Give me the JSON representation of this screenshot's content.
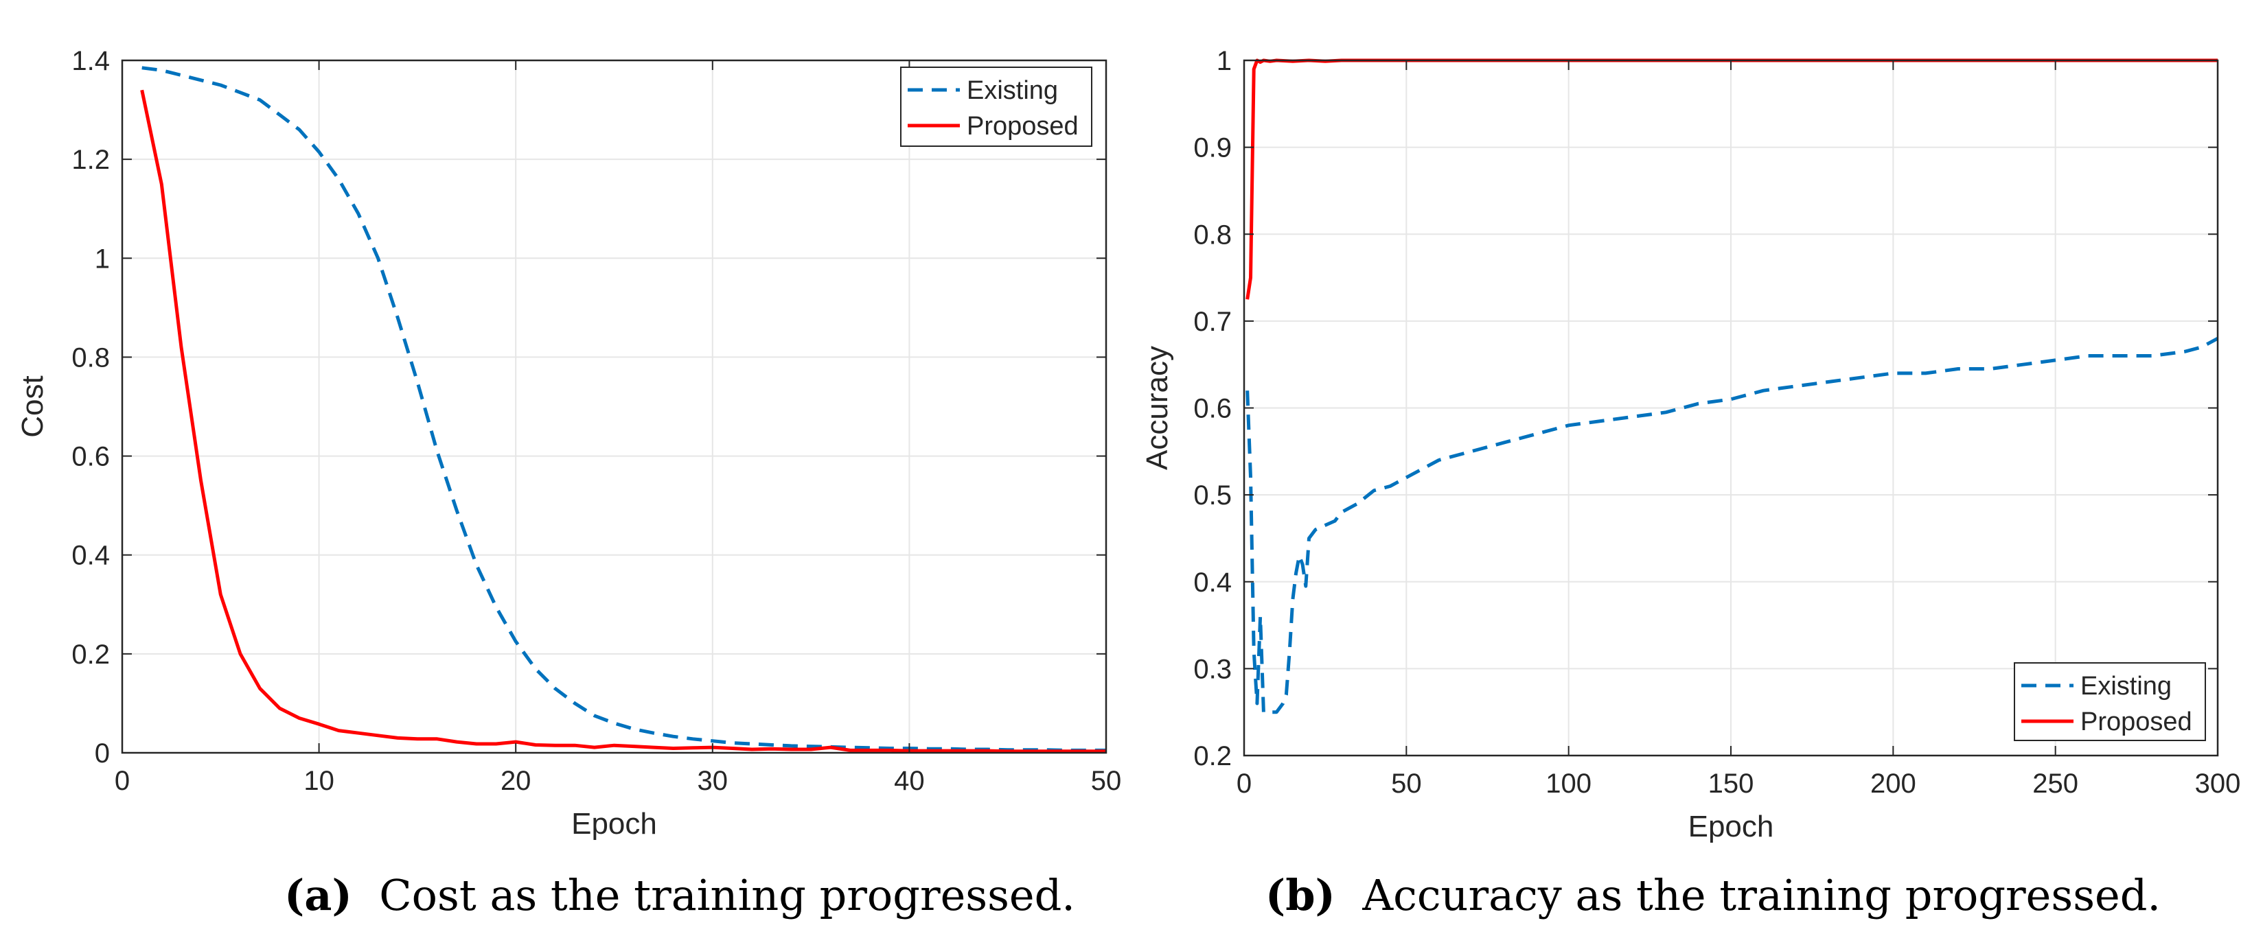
{
  "colors": {
    "existing": "#0072BD",
    "proposed": "#FF0000",
    "grid": "#E6E6E6",
    "axis": "#262626"
  },
  "captions": [
    {
      "tag": "(a)",
      "text": "Cost as the training progressed."
    },
    {
      "tag": "(b)",
      "text": "Accuracy as the training progressed."
    }
  ],
  "chart_data": [
    {
      "type": "line",
      "title": "",
      "xlabel": "Epoch",
      "ylabel": "Cost",
      "xlim": [
        0,
        50
      ],
      "ylim": [
        0,
        1.4
      ],
      "xticks": [
        0,
        10,
        20,
        30,
        40,
        50
      ],
      "xtick_labels": [
        "0",
        "10",
        "20",
        "30",
        "40",
        "50"
      ],
      "yticks": [
        0,
        0.2,
        0.4,
        0.6,
        0.8,
        1,
        1.2,
        1.4
      ],
      "ytick_labels": [
        "0",
        "0.2",
        "0.4",
        "0.6",
        "0.8",
        "1",
        "1.2",
        "1.4"
      ],
      "grid": true,
      "legend": "top-right",
      "series": [
        {
          "name": "Existing",
          "style": "dashed",
          "x": [
            1,
            2,
            3,
            4,
            5,
            6,
            7,
            8,
            9,
            10,
            11,
            12,
            13,
            14,
            15,
            16,
            17,
            18,
            19,
            20,
            21,
            22,
            23,
            24,
            25,
            26,
            27,
            28,
            29,
            30,
            31,
            32,
            33,
            34,
            35,
            36,
            37,
            38,
            39,
            40,
            41,
            42,
            43,
            44,
            45,
            46,
            47,
            48,
            49,
            50
          ],
          "y": [
            1.385,
            1.38,
            1.37,
            1.36,
            1.35,
            1.335,
            1.32,
            1.29,
            1.26,
            1.215,
            1.16,
            1.09,
            1.0,
            0.88,
            0.75,
            0.61,
            0.49,
            0.38,
            0.295,
            0.225,
            0.17,
            0.13,
            0.1,
            0.075,
            0.06,
            0.048,
            0.04,
            0.033,
            0.028,
            0.024,
            0.02,
            0.018,
            0.016,
            0.014,
            0.013,
            0.012,
            0.011,
            0.01,
            0.009,
            0.009,
            0.008,
            0.008,
            0.007,
            0.007,
            0.006,
            0.006,
            0.006,
            0.005,
            0.005,
            0.005
          ]
        },
        {
          "name": "Proposed",
          "style": "solid",
          "x": [
            1,
            2,
            3,
            4,
            5,
            6,
            7,
            8,
            9,
            10,
            11,
            12,
            13,
            14,
            15,
            16,
            17,
            18,
            19,
            20,
            21,
            22,
            23,
            24,
            25,
            26,
            27,
            28,
            29,
            30,
            31,
            32,
            33,
            34,
            35,
            36,
            37,
            38,
            39,
            40,
            41,
            42,
            43,
            44,
            45,
            46,
            47,
            48,
            49,
            50
          ],
          "y": [
            1.34,
            1.15,
            0.82,
            0.55,
            0.32,
            0.2,
            0.13,
            0.09,
            0.07,
            0.058,
            0.045,
            0.04,
            0.035,
            0.03,
            0.028,
            0.028,
            0.022,
            0.018,
            0.018,
            0.022,
            0.016,
            0.015,
            0.015,
            0.011,
            0.015,
            0.013,
            0.011,
            0.009,
            0.01,
            0.011,
            0.009,
            0.007,
            0.008,
            0.007,
            0.007,
            0.011,
            0.005,
            0.005,
            0.005,
            0.004,
            0.004,
            0.004,
            0.004,
            0.004,
            0.003,
            0.003,
            0.003,
            0.003,
            0.003,
            0.003
          ]
        }
      ]
    },
    {
      "type": "line",
      "title": "",
      "xlabel": "Epoch",
      "ylabel": "Accuracy",
      "xlim": [
        0,
        300
      ],
      "ylim": [
        0.2,
        1.0
      ],
      "xticks": [
        0,
        50,
        100,
        150,
        200,
        250,
        300
      ],
      "xtick_labels": [
        "0",
        "50",
        "100",
        "150",
        "200",
        "250",
        "300"
      ],
      "yticks": [
        0.2,
        0.3,
        0.4,
        0.5,
        0.6,
        0.7,
        0.8,
        0.9,
        1
      ],
      "ytick_labels": [
        "0.2",
        "0.3",
        "0.4",
        "0.5",
        "0.6",
        "0.7",
        "0.8",
        "0.9",
        "1"
      ],
      "grid": true,
      "legend": "bottom-right",
      "series": [
        {
          "name": "Existing",
          "style": "dashed",
          "x": [
            1,
            2,
            3,
            4,
            5,
            6,
            7,
            8,
            10,
            12,
            13,
            14,
            15,
            16,
            17,
            18,
            19,
            20,
            22,
            25,
            28,
            30,
            35,
            40,
            45,
            50,
            55,
            60,
            70,
            80,
            90,
            100,
            110,
            120,
            130,
            140,
            150,
            160,
            170,
            180,
            190,
            200,
            210,
            220,
            230,
            240,
            250,
            260,
            270,
            280,
            290,
            295,
            300
          ],
          "y": [
            0.62,
            0.52,
            0.32,
            0.26,
            0.36,
            0.25,
            0.25,
            0.25,
            0.25,
            0.26,
            0.27,
            0.32,
            0.38,
            0.41,
            0.43,
            0.42,
            0.395,
            0.45,
            0.46,
            0.465,
            0.47,
            0.48,
            0.49,
            0.505,
            0.51,
            0.52,
            0.53,
            0.54,
            0.55,
            0.56,
            0.57,
            0.58,
            0.585,
            0.59,
            0.595,
            0.605,
            0.61,
            0.62,
            0.625,
            0.63,
            0.635,
            0.64,
            0.64,
            0.645,
            0.645,
            0.65,
            0.655,
            0.66,
            0.66,
            0.66,
            0.665,
            0.67,
            0.68
          ]
        },
        {
          "name": "Proposed",
          "style": "solid",
          "x": [
            1,
            2,
            3,
            4,
            5,
            6,
            8,
            10,
            15,
            20,
            25,
            30,
            40,
            50,
            100,
            150,
            200,
            250,
            300
          ],
          "y": [
            0.725,
            0.75,
            0.99,
            1.0,
            0.998,
            1.0,
            0.999,
            1.0,
            0.999,
            1.0,
            0.999,
            1.0,
            1.0,
            1.0,
            1.0,
            1.0,
            1.0,
            1.0,
            1.0
          ]
        }
      ]
    }
  ]
}
